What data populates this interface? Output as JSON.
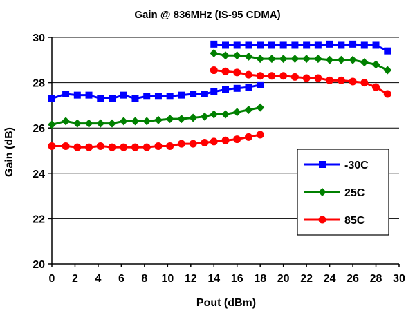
{
  "chart_data": {
    "type": "line",
    "title": "Gain @ 836MHz (IS-95 CDMA)",
    "xlabel": "Pout (dBm)",
    "ylabel": "Gain (dB)",
    "xlim": [
      0,
      30
    ],
    "ylim": [
      20,
      30
    ],
    "xticks": [
      0,
      2,
      4,
      6,
      8,
      10,
      12,
      14,
      16,
      18,
      20,
      22,
      24,
      26,
      28,
      30
    ],
    "yticks": [
      20,
      22,
      24,
      26,
      28,
      30
    ],
    "grid": "horizontal",
    "legend_position": "right",
    "series": [
      {
        "name": "-30C",
        "color": "#0000ff",
        "marker": "square",
        "segments": [
          [
            [
              0,
              27.3
            ],
            [
              1.2,
              27.5
            ],
            [
              2.2,
              27.45
            ],
            [
              3.2,
              27.45
            ],
            [
              4.2,
              27.3
            ],
            [
              5.2,
              27.3
            ],
            [
              6.2,
              27.45
            ],
            [
              7.2,
              27.3
            ],
            [
              8.2,
              27.4
            ],
            [
              9.2,
              27.4
            ],
            [
              10.2,
              27.4
            ],
            [
              11.2,
              27.45
            ],
            [
              12.2,
              27.5
            ],
            [
              13.2,
              27.5
            ],
            [
              14,
              27.6
            ],
            [
              15,
              27.7
            ],
            [
              16,
              27.75
            ],
            [
              17,
              27.8
            ],
            [
              18,
              27.9
            ]
          ],
          [
            [
              14,
              29.7
            ],
            [
              15,
              29.65
            ],
            [
              16,
              29.65
            ],
            [
              17,
              29.65
            ],
            [
              18,
              29.65
            ],
            [
              19,
              29.65
            ],
            [
              20,
              29.65
            ],
            [
              21,
              29.65
            ],
            [
              22,
              29.65
            ],
            [
              23,
              29.65
            ],
            [
              24,
              29.7
            ],
            [
              25,
              29.65
            ],
            [
              26,
              29.7
            ],
            [
              27,
              29.65
            ],
            [
              28,
              29.65
            ],
            [
              29,
              29.4
            ]
          ]
        ]
      },
      {
        "name": "25C",
        "color": "#008000",
        "marker": "diamond",
        "segments": [
          [
            [
              0,
              26.15
            ],
            [
              1.2,
              26.3
            ],
            [
              2.2,
              26.2
            ],
            [
              3.2,
              26.2
            ],
            [
              4.2,
              26.2
            ],
            [
              5.2,
              26.2
            ],
            [
              6.2,
              26.3
            ],
            [
              7.2,
              26.3
            ],
            [
              8.2,
              26.3
            ],
            [
              9.2,
              26.35
            ],
            [
              10.2,
              26.4
            ],
            [
              11.2,
              26.4
            ],
            [
              12.2,
              26.45
            ],
            [
              13.2,
              26.5
            ],
            [
              14,
              26.6
            ],
            [
              15,
              26.6
            ],
            [
              16,
              26.7
            ],
            [
              17,
              26.8
            ],
            [
              18,
              26.9
            ]
          ],
          [
            [
              14,
              29.3
            ],
            [
              15,
              29.2
            ],
            [
              16,
              29.2
            ],
            [
              17,
              29.15
            ],
            [
              18,
              29.05
            ],
            [
              19,
              29.05
            ],
            [
              20,
              29.05
            ],
            [
              21,
              29.05
            ],
            [
              22,
              29.05
            ],
            [
              23,
              29.05
            ],
            [
              24,
              29.0
            ],
            [
              25,
              29.0
            ],
            [
              26,
              29.0
            ],
            [
              27,
              28.9
            ],
            [
              28,
              28.8
            ],
            [
              29,
              28.55
            ]
          ]
        ]
      },
      {
        "name": "85C",
        "color": "#ff0000",
        "marker": "circle",
        "segments": [
          [
            [
              0,
              25.2
            ],
            [
              1.2,
              25.2
            ],
            [
              2.2,
              25.15
            ],
            [
              3.2,
              25.15
            ],
            [
              4.2,
              25.2
            ],
            [
              5.2,
              25.15
            ],
            [
              6.2,
              25.15
            ],
            [
              7.2,
              25.15
            ],
            [
              8.2,
              25.15
            ],
            [
              9.2,
              25.2
            ],
            [
              10.2,
              25.2
            ],
            [
              11.2,
              25.3
            ],
            [
              12.2,
              25.3
            ],
            [
              13.2,
              25.35
            ],
            [
              14,
              25.4
            ],
            [
              15,
              25.45
            ],
            [
              16,
              25.5
            ],
            [
              17,
              25.6
            ],
            [
              18,
              25.7
            ]
          ],
          [
            [
              14,
              28.55
            ],
            [
              15,
              28.5
            ],
            [
              16,
              28.45
            ],
            [
              17,
              28.35
            ],
            [
              18,
              28.3
            ],
            [
              19,
              28.3
            ],
            [
              20,
              28.3
            ],
            [
              21,
              28.25
            ],
            [
              22,
              28.2
            ],
            [
              23,
              28.2
            ],
            [
              24,
              28.1
            ],
            [
              25,
              28.1
            ],
            [
              26,
              28.05
            ],
            [
              27,
              28.0
            ],
            [
              28,
              27.8
            ],
            [
              29,
              27.5
            ]
          ]
        ]
      }
    ]
  }
}
